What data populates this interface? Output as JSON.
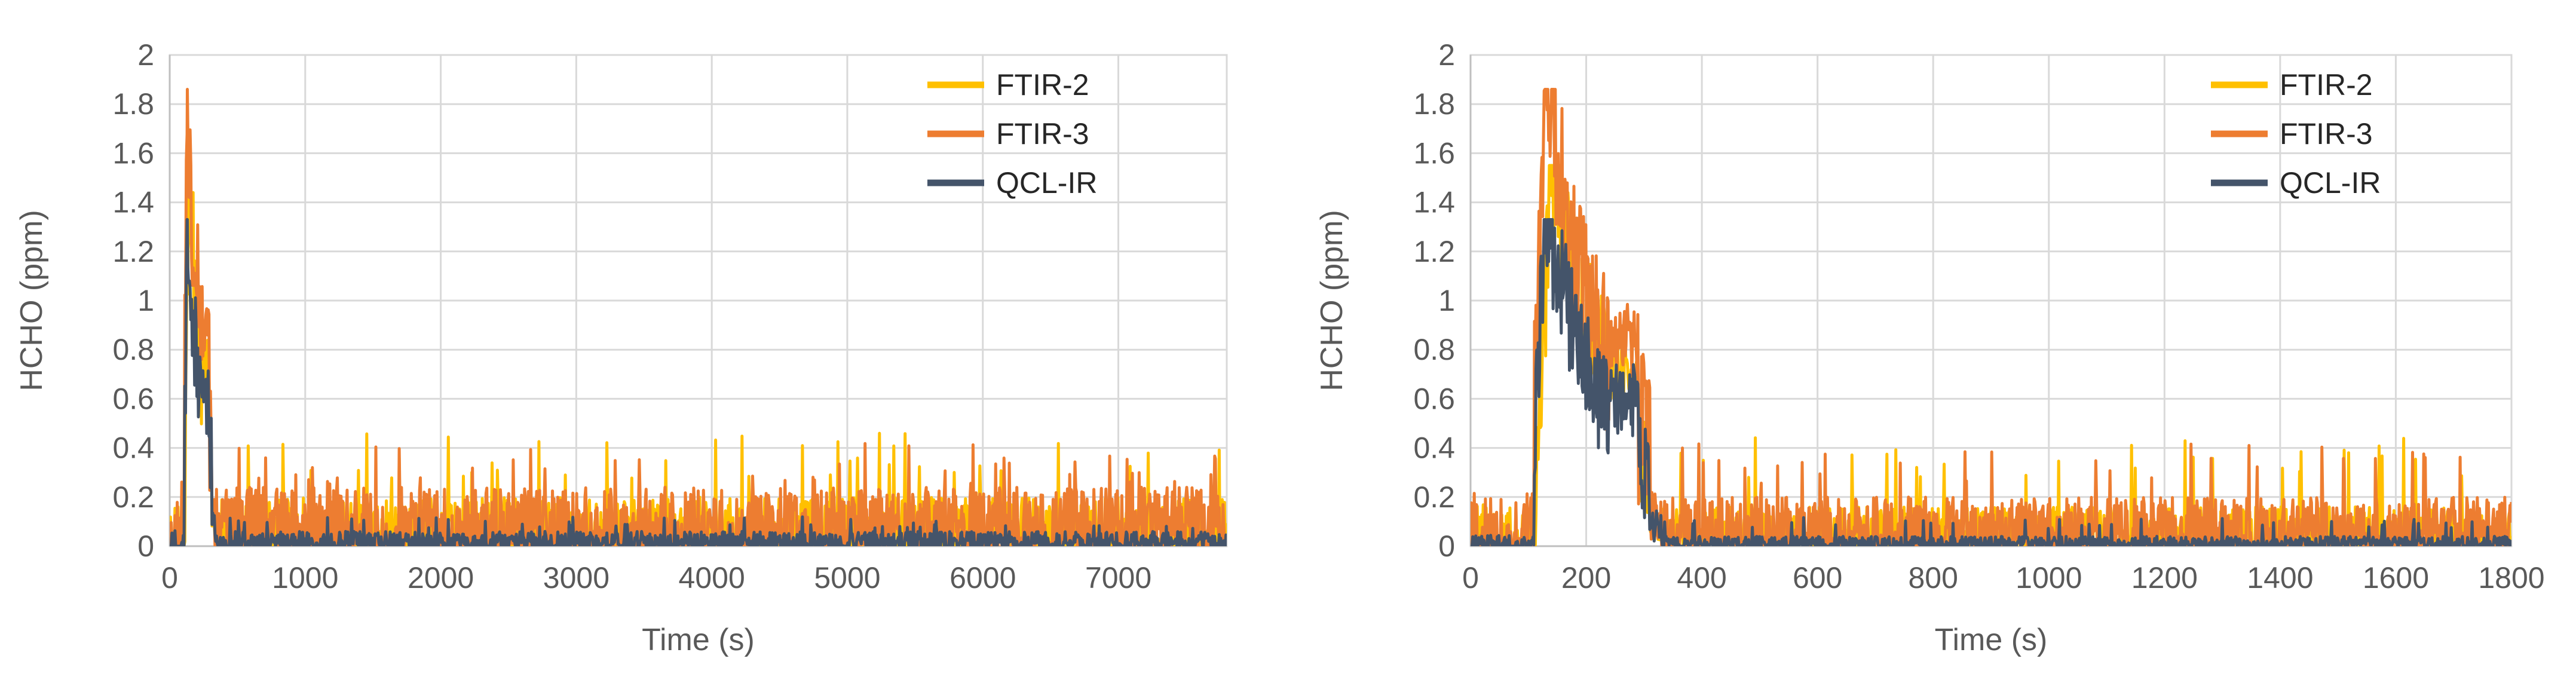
{
  "chart_data": [
    {
      "type": "line",
      "title": "",
      "xlabel": "Time (s)",
      "ylabel": "HCHO (ppm)",
      "xlim": [
        0,
        7800
      ],
      "ylim": [
        0,
        2
      ],
      "xticks": [
        0,
        1000,
        2000,
        3000,
        4000,
        5000,
        6000,
        7000
      ],
      "xtick_labels": [
        "0",
        "1000",
        "2000",
        "3000",
        "4000",
        "5000",
        "6000",
        "7000"
      ],
      "yticks": [
        0,
        0.2,
        0.4,
        0.6,
        0.8,
        1,
        1.2,
        1.4,
        1.6,
        1.8,
        2
      ],
      "ytick_labels": [
        "0",
        "0.2",
        "0.4",
        "0.6",
        "0.8",
        "1",
        "1.2",
        "1.4",
        "1.6",
        "1.8",
        "2"
      ],
      "grid": true,
      "legend_position": "top-right",
      "series": [
        {
          "name": "FTIR-2",
          "color": "#FFC000",
          "peak_time": 140,
          "peak": 1.55,
          "baseline": 0.1,
          "spike_max": 0.46
        },
        {
          "name": "FTIR-3",
          "color": "#ED7D31",
          "peak_time": 130,
          "peak": 1.86,
          "baseline": 0.12,
          "spike_max": 0.42
        },
        {
          "name": "QCL-IR",
          "color": "#44546A",
          "peak_time": 130,
          "peak": 1.33,
          "baseline": 0.03,
          "spike_max": 0.12
        }
      ]
    },
    {
      "type": "line",
      "title": "",
      "xlabel": "Time (s)",
      "ylabel": "HCHO (ppm)",
      "xlim": [
        0,
        1800
      ],
      "ylim": [
        0,
        2
      ],
      "xticks": [
        0,
        200,
        400,
        600,
        800,
        1000,
        1200,
        1400,
        1600,
        1800
      ],
      "xtick_labels": [
        "0",
        "200",
        "400",
        "600",
        "800",
        "1000",
        "1200",
        "1400",
        "1600",
        "1800"
      ],
      "yticks": [
        0,
        0.2,
        0.4,
        0.6,
        0.8,
        1,
        1.2,
        1.4,
        1.6,
        1.8,
        2
      ],
      "ytick_labels": [
        "0",
        "0.2",
        "0.4",
        "0.6",
        "0.8",
        "1",
        "1.2",
        "1.4",
        "1.6",
        "1.8",
        "2"
      ],
      "grid": true,
      "legend_position": "top-right",
      "series": [
        {
          "name": "FTIR-2",
          "color": "#FFC000",
          "peak_time": 140,
          "peak": 1.55,
          "baseline": 0.08,
          "spike_max": 0.46
        },
        {
          "name": "FTIR-3",
          "color": "#ED7D31",
          "peak_time": 130,
          "peak": 1.86,
          "baseline": 0.1,
          "spike_max": 0.42
        },
        {
          "name": "QCL-IR",
          "color": "#44546A",
          "peak_time": 130,
          "peak": 1.33,
          "baseline": 0.02,
          "spike_max": 0.12
        }
      ]
    }
  ]
}
